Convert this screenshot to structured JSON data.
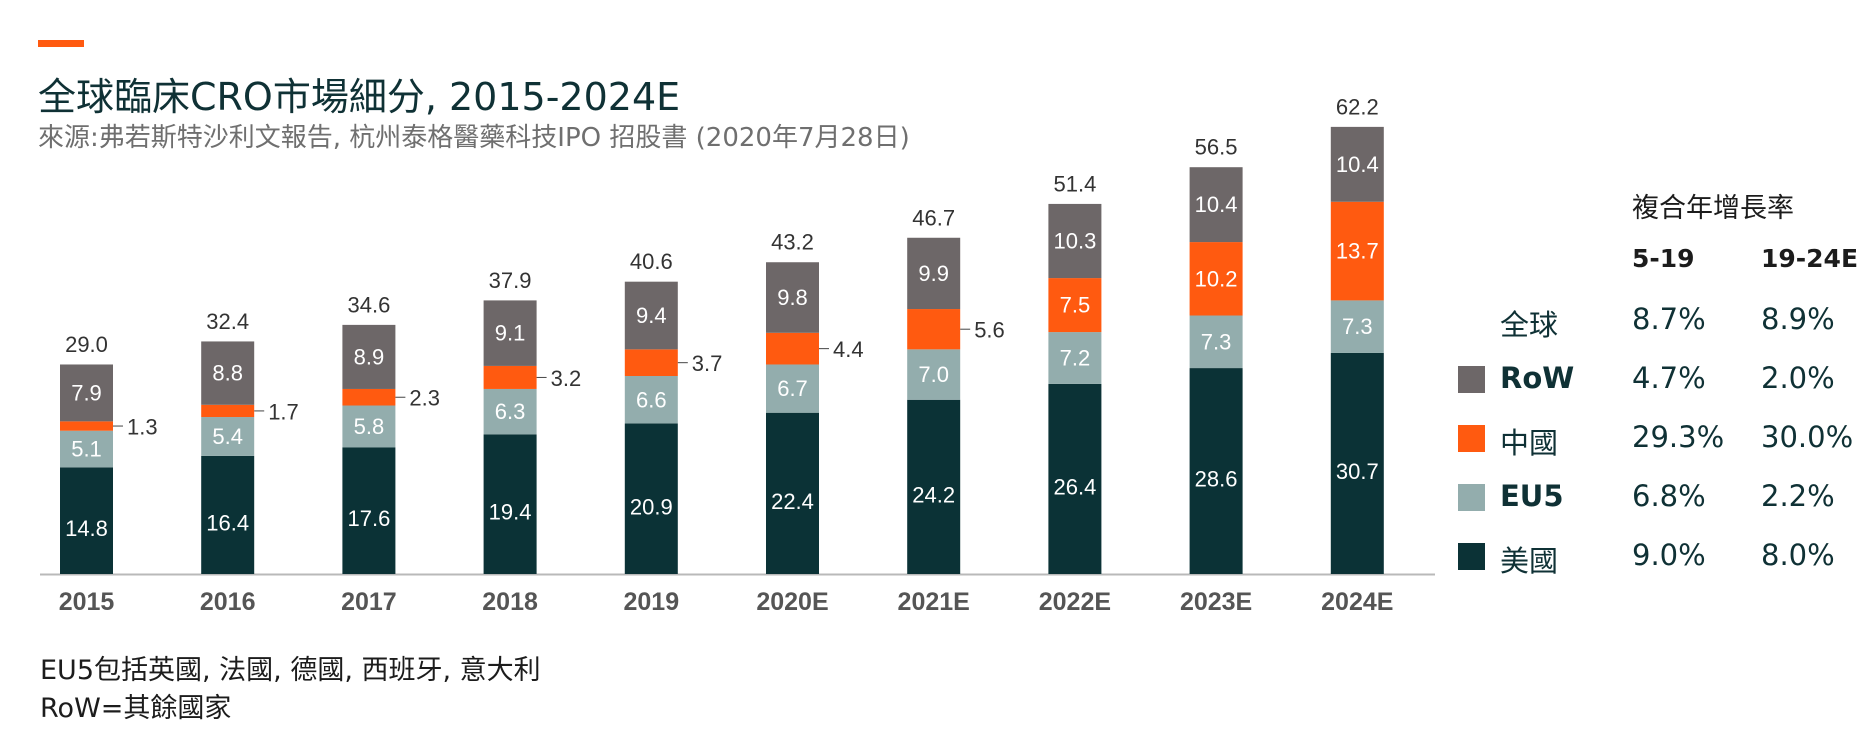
{
  "header": {
    "title": "全球臨床CRO市場細分, 2015-2024E",
    "subtitle": "來源:弗若斯特沙利文報告, 杭州泰格醫藥科技IPO 招股書 (2020年7月28日)"
  },
  "colors": {
    "accent": "#ff5a10",
    "usa": "#0b3236",
    "eu5": "#93adad",
    "china": "#ff5a10",
    "row": "#6d6768",
    "axis": "#b9b9b9"
  },
  "chart_data": {
    "type": "bar",
    "stacked": true,
    "categories": [
      "2015",
      "2016",
      "2017",
      "2018",
      "2019",
      "2020E",
      "2021E",
      "2022E",
      "2023E",
      "2024E"
    ],
    "series": [
      {
        "name": "美國",
        "key": "usa",
        "values": [
          14.8,
          16.4,
          17.6,
          19.4,
          20.9,
          22.4,
          24.2,
          26.4,
          28.6,
          30.7
        ]
      },
      {
        "name": "EU5",
        "key": "eu5",
        "values": [
          5.1,
          5.4,
          5.8,
          6.3,
          6.6,
          6.7,
          7.0,
          7.2,
          7.3,
          7.3
        ]
      },
      {
        "name": "中國",
        "key": "china",
        "values": [
          1.3,
          1.7,
          2.3,
          3.2,
          3.7,
          4.4,
          5.6,
          7.5,
          10.2,
          13.7
        ]
      },
      {
        "name": "RoW",
        "key": "row",
        "values": [
          7.9,
          8.8,
          8.9,
          9.1,
          9.4,
          9.8,
          9.9,
          10.3,
          10.4,
          10.4
        ]
      }
    ],
    "totals": [
      29.0,
      32.4,
      34.6,
      37.9,
      40.6,
      43.2,
      46.7,
      51.4,
      56.5,
      62.2
    ],
    "value_labels": {
      "usa": [
        "14.8",
        "16.4",
        "17.6",
        "19.4",
        "20.9",
        "22.4",
        "24.2",
        "26.4",
        "28.6",
        "30.7"
      ],
      "eu5": [
        "5.1",
        "5.4",
        "5.8",
        "6.3",
        "6.6",
        "6.7",
        "7.0",
        "7.2",
        "7.3",
        "7.3"
      ],
      "china": [
        "1.3",
        "1.7",
        "2.3",
        "3.2",
        "3.7",
        "4.4",
        "5.6",
        "7.5",
        "10.2",
        "13.7"
      ],
      "row": [
        "7.9",
        "8.8",
        "8.9",
        "9.1",
        "9.4",
        "9.8",
        "9.9",
        "10.3",
        "10.4",
        "10.4"
      ]
    },
    "total_labels": [
      "29.0",
      "32.4",
      "34.6",
      "37.9",
      "40.6",
      "43.2",
      "46.7",
      "51.4",
      "56.5",
      "62.2"
    ],
    "china_label_outside": [
      true,
      true,
      true,
      true,
      true,
      true,
      true,
      false,
      false,
      false
    ],
    "ylim": [
      0,
      66
    ],
    "grid": false
  },
  "cagr": {
    "title": "複合年增長率",
    "col1": "5-19",
    "col2": "19-24E",
    "rows": [
      {
        "label": "全球",
        "swatch": "",
        "bold": false,
        "v1": "8.7%",
        "v2": "8.9%"
      },
      {
        "label": "RoW",
        "swatch": "#6d6768",
        "bold": true,
        "v1": "4.7%",
        "v2": "2.0%"
      },
      {
        "label": "中國",
        "swatch": "#ff5a10",
        "bold": false,
        "v1": "29.3%",
        "v2": "30.0%"
      },
      {
        "label": "EU5",
        "swatch": "#93adad",
        "bold": true,
        "v1": "6.8%",
        "v2": "2.2%"
      },
      {
        "label": "美國",
        "swatch": "#0b3236",
        "bold": false,
        "v1": "9.0%",
        "v2": "8.0%"
      }
    ]
  },
  "footnotes": {
    "line1": "EU5包括英國, 法國, 德國, 西班牙, 意大利",
    "line2": "RoW=其餘國家"
  }
}
